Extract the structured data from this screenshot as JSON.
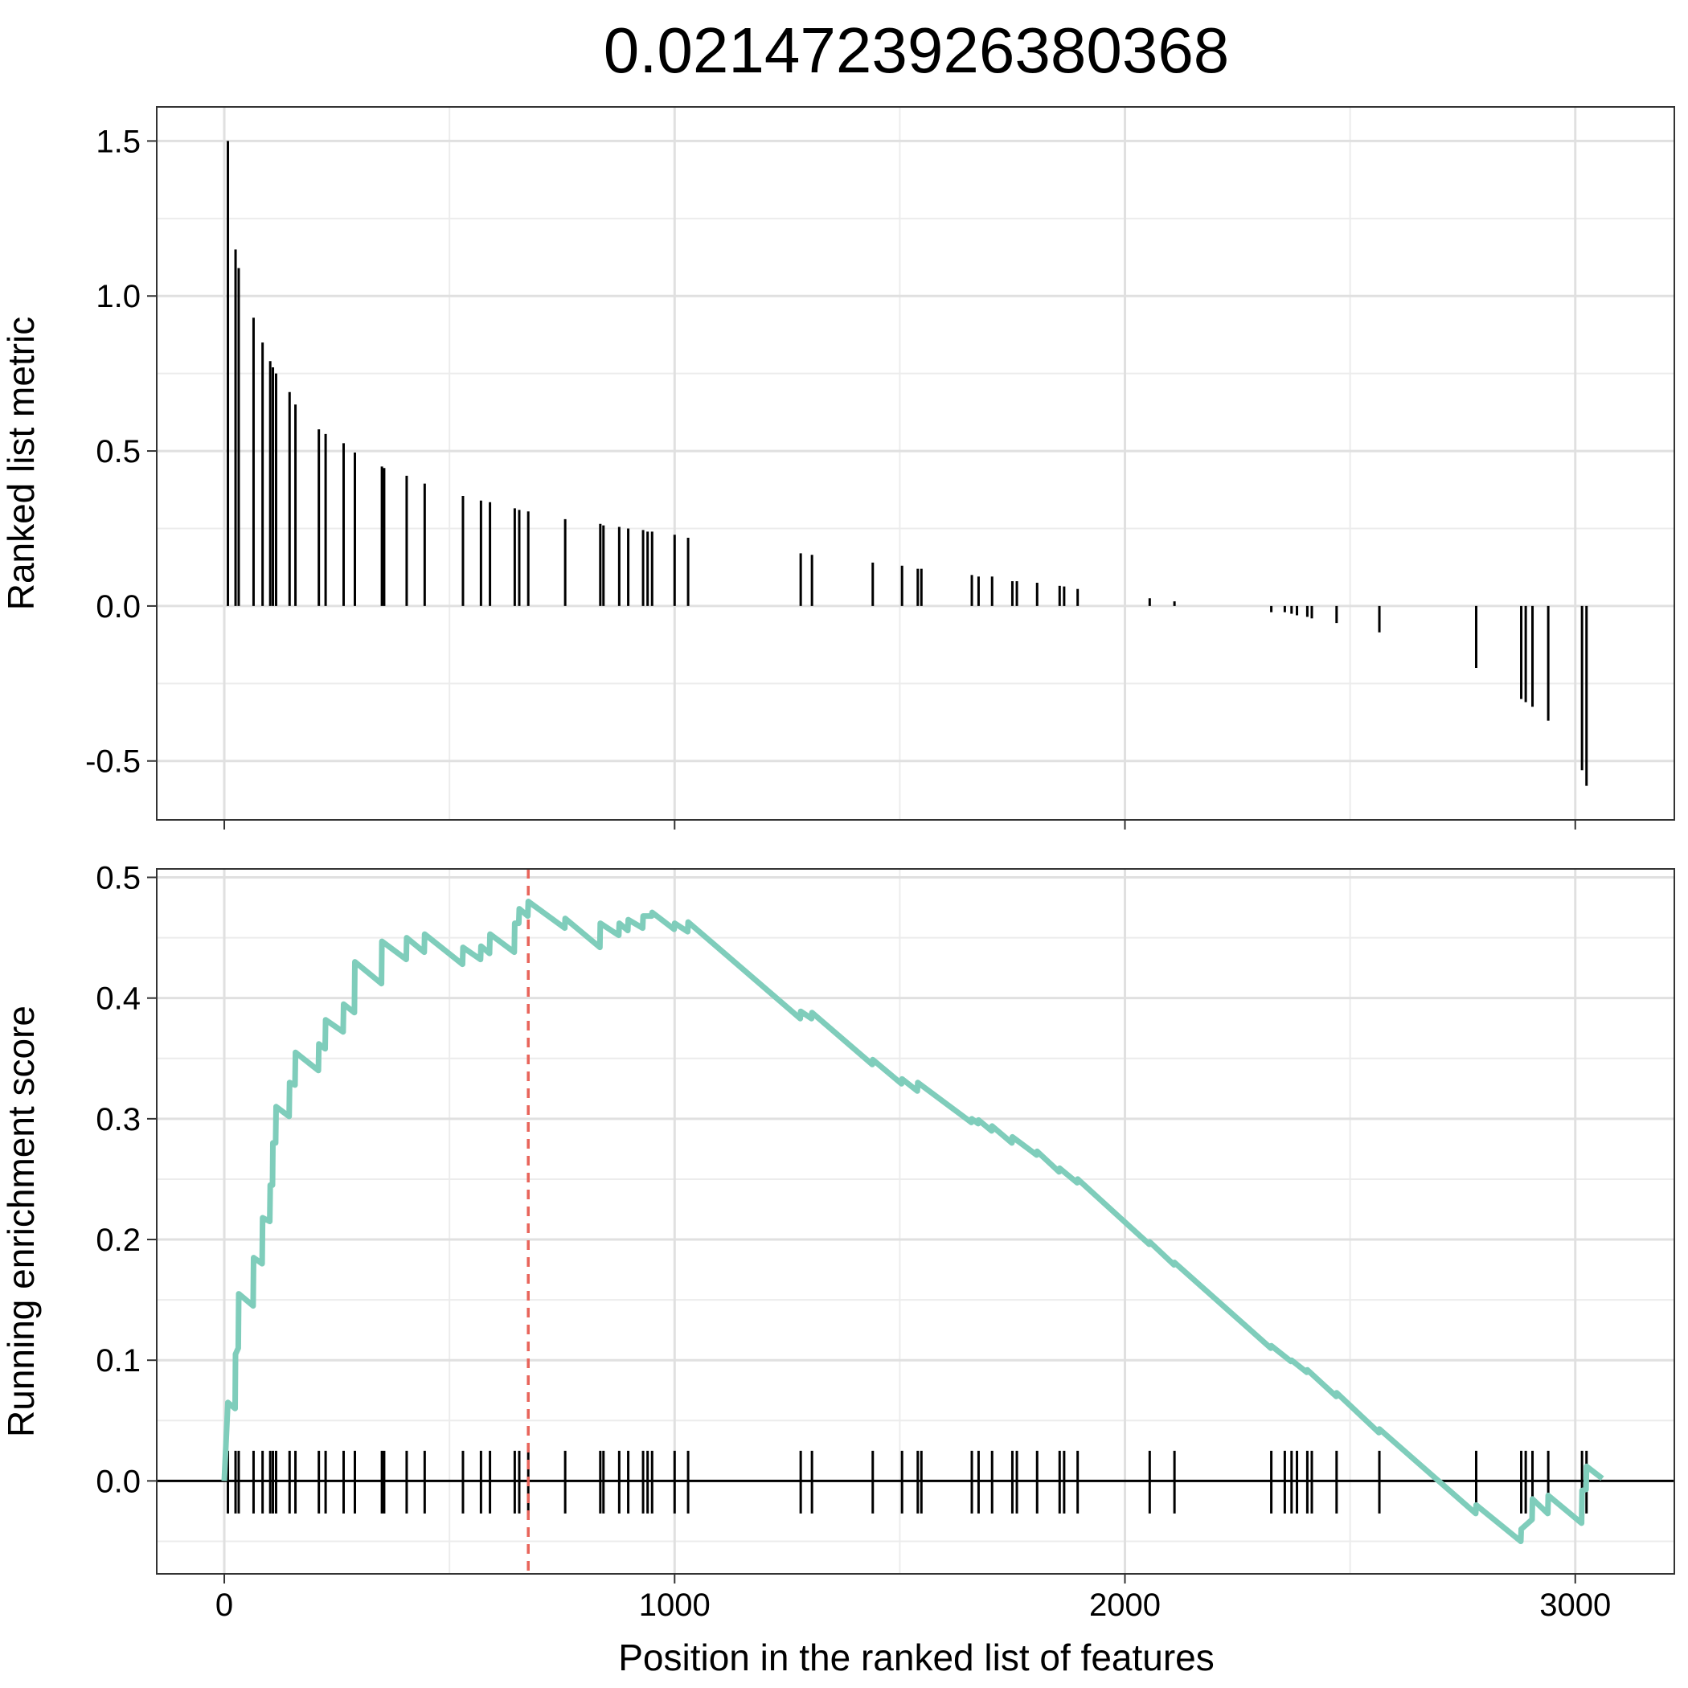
{
  "chart_data": [
    {
      "type": "bar",
      "panel": "ranked-list-metric",
      "title": "0.0214723926380368",
      "xlabel": "",
      "ylabel": "Ranked list metric",
      "xlim": [
        -150,
        3220
      ],
      "ylim": [
        -0.69,
        1.61
      ],
      "xticks": [
        0,
        1000,
        2000,
        3000
      ],
      "yticks": [
        -0.5,
        0.0,
        0.5,
        1.0,
        1.5
      ],
      "ytick_labels": [
        "-0.5",
        "0.0",
        "0.5",
        "1.0",
        "1.5"
      ],
      "grid": true,
      "points": [
        [
          8,
          1.5
        ],
        [
          25,
          1.15
        ],
        [
          32,
          1.09
        ],
        [
          65,
          0.93
        ],
        [
          85,
          0.85
        ],
        [
          102,
          0.79
        ],
        [
          108,
          0.77
        ],
        [
          115,
          0.75
        ],
        [
          145,
          0.69
        ],
        [
          158,
          0.65
        ],
        [
          210,
          0.57
        ],
        [
          225,
          0.555
        ],
        [
          265,
          0.525
        ],
        [
          290,
          0.495
        ],
        [
          350,
          0.45
        ],
        [
          355,
          0.445
        ],
        [
          405,
          0.42
        ],
        [
          445,
          0.395
        ],
        [
          530,
          0.355
        ],
        [
          570,
          0.34
        ],
        [
          590,
          0.335
        ],
        [
          645,
          0.315
        ],
        [
          655,
          0.31
        ],
        [
          675,
          0.305
        ],
        [
          757,
          0.28
        ],
        [
          835,
          0.265
        ],
        [
          842,
          0.26
        ],
        [
          877,
          0.255
        ],
        [
          897,
          0.25
        ],
        [
          930,
          0.245
        ],
        [
          940,
          0.24
        ],
        [
          950,
          0.24
        ],
        [
          1000,
          0.23
        ],
        [
          1030,
          0.22
        ],
        [
          1280,
          0.17
        ],
        [
          1305,
          0.165
        ],
        [
          1440,
          0.14
        ],
        [
          1505,
          0.13
        ],
        [
          1540,
          0.12
        ],
        [
          1548,
          0.12
        ],
        [
          1660,
          0.1
        ],
        [
          1675,
          0.095
        ],
        [
          1705,
          0.095
        ],
        [
          1750,
          0.08
        ],
        [
          1760,
          0.08
        ],
        [
          1805,
          0.075
        ],
        [
          1855,
          0.065
        ],
        [
          1865,
          0.063
        ],
        [
          1895,
          0.055
        ],
        [
          2055,
          0.025
        ],
        [
          2110,
          0.015
        ],
        [
          2325,
          -0.02
        ],
        [
          2355,
          -0.02
        ],
        [
          2370,
          -0.025
        ],
        [
          2382,
          -0.03
        ],
        [
          2405,
          -0.035
        ],
        [
          2415,
          -0.04
        ],
        [
          2470,
          -0.055
        ],
        [
          2565,
          -0.085
        ],
        [
          2780,
          -0.2
        ],
        [
          2880,
          -0.3
        ],
        [
          2890,
          -0.31
        ],
        [
          2905,
          -0.325
        ],
        [
          2940,
          -0.37
        ],
        [
          3015,
          -0.53
        ],
        [
          3025,
          -0.58
        ]
      ]
    },
    {
      "type": "line",
      "panel": "running-enrichment-score",
      "xlabel": "Position in the ranked list of features",
      "ylabel": "Running enrichment score",
      "xlim": [
        -150,
        3220
      ],
      "ylim": [
        -0.077,
        0.507
      ],
      "xticks": [
        0,
        1000,
        2000,
        3000
      ],
      "xtick_labels": [
        "0",
        "1000",
        "2000",
        "3000"
      ],
      "yticks": [
        0.0,
        0.1,
        0.2,
        0.3,
        0.4,
        0.5
      ],
      "ytick_labels": [
        "0.0",
        "0.1",
        "0.2",
        "0.3",
        "0.4",
        "0.5"
      ],
      "grid": true,
      "baseline": 0,
      "max_position": 675,
      "series": [
        {
          "color": "#7fcdbb",
          "points": [
            [
              0,
              0.0
            ],
            [
              8,
              0.065
            ],
            [
              24,
              0.06
            ],
            [
              25,
              0.105
            ],
            [
              31,
              0.11
            ],
            [
              32,
              0.155
            ],
            [
              64,
              0.145
            ],
            [
              65,
              0.185
            ],
            [
              84,
              0.18
            ],
            [
              85,
              0.218
            ],
            [
              101,
              0.215
            ],
            [
              102,
              0.245
            ],
            [
              107,
              0.245
            ],
            [
              108,
              0.28
            ],
            [
              114,
              0.28
            ],
            [
              115,
              0.31
            ],
            [
              144,
              0.302
            ],
            [
              145,
              0.33
            ],
            [
              157,
              0.328
            ],
            [
              158,
              0.355
            ],
            [
              209,
              0.34
            ],
            [
              210,
              0.362
            ],
            [
              224,
              0.358
            ],
            [
              225,
              0.382
            ],
            [
              264,
              0.372
            ],
            [
              265,
              0.395
            ],
            [
              289,
              0.388
            ],
            [
              290,
              0.43
            ],
            [
              349,
              0.412
            ],
            [
              350,
              0.447
            ],
            [
              404,
              0.432
            ],
            [
              405,
              0.45
            ],
            [
              444,
              0.438
            ],
            [
              445,
              0.453
            ],
            [
              529,
              0.428
            ],
            [
              530,
              0.442
            ],
            [
              569,
              0.432
            ],
            [
              570,
              0.443
            ],
            [
              589,
              0.437
            ],
            [
              590,
              0.453
            ],
            [
              644,
              0.438
            ],
            [
              645,
              0.462
            ],
            [
              654,
              0.462
            ],
            [
              655,
              0.474
            ],
            [
              674,
              0.468
            ],
            [
              675,
              0.48
            ],
            [
              756,
              0.458
            ],
            [
              757,
              0.466
            ],
            [
              834,
              0.442
            ],
            [
              835,
              0.462
            ],
            [
              876,
              0.452
            ],
            [
              877,
              0.462
            ],
            [
              896,
              0.456
            ],
            [
              897,
              0.465
            ],
            [
              929,
              0.458
            ],
            [
              930,
              0.468
            ],
            [
              949,
              0.468
            ],
            [
              950,
              0.471
            ],
            [
              999,
              0.457
            ],
            [
              1000,
              0.462
            ],
            [
              1029,
              0.455
            ],
            [
              1030,
              0.463
            ],
            [
              1279,
              0.383
            ],
            [
              1280,
              0.389
            ],
            [
              1304,
              0.383
            ],
            [
              1305,
              0.388
            ],
            [
              1439,
              0.345
            ],
            [
              1440,
              0.349
            ],
            [
              1504,
              0.329
            ],
            [
              1505,
              0.333
            ],
            [
              1539,
              0.323
            ],
            [
              1540,
              0.33
            ],
            [
              1659,
              0.297
            ],
            [
              1660,
              0.3
            ],
            [
              1674,
              0.296
            ],
            [
              1675,
              0.299
            ],
            [
              1704,
              0.29
            ],
            [
              1705,
              0.294
            ],
            [
              1749,
              0.28
            ],
            [
              1750,
              0.285
            ],
            [
              1804,
              0.27
            ],
            [
              1805,
              0.273
            ],
            [
              1854,
              0.256
            ],
            [
              1855,
              0.259
            ],
            [
              1894,
              0.247
            ],
            [
              1895,
              0.25
            ],
            [
              2054,
              0.196
            ],
            [
              2055,
              0.198
            ],
            [
              2109,
              0.179
            ],
            [
              2110,
              0.181
            ],
            [
              2324,
              0.11
            ],
            [
              2325,
              0.112
            ],
            [
              2369,
              0.099
            ],
            [
              2370,
              0.1
            ],
            [
              2404,
              0.09
            ],
            [
              2405,
              0.092
            ],
            [
              2469,
              0.07
            ],
            [
              2470,
              0.073
            ],
            [
              2564,
              0.04
            ],
            [
              2565,
              0.043
            ],
            [
              2779,
              -0.027
            ],
            [
              2780,
              -0.02
            ],
            [
              2879,
              -0.05
            ],
            [
              2880,
              -0.04
            ],
            [
              2904,
              -0.032
            ],
            [
              2905,
              -0.015
            ],
            [
              2939,
              -0.027
            ],
            [
              2940,
              -0.012
            ],
            [
              3014,
              -0.035
            ],
            [
              3015,
              -0.008
            ],
            [
              3024,
              -0.007
            ],
            [
              3025,
              0.012
            ],
            [
              3060,
              0.002
            ]
          ]
        }
      ],
      "hits": [
        8,
        25,
        32,
        65,
        85,
        102,
        108,
        115,
        145,
        158,
        210,
        225,
        265,
        290,
        350,
        355,
        405,
        445,
        530,
        570,
        590,
        645,
        655,
        675,
        757,
        835,
        842,
        877,
        897,
        930,
        940,
        950,
        1000,
        1030,
        1280,
        1305,
        1440,
        1505,
        1540,
        1548,
        1660,
        1675,
        1705,
        1750,
        1760,
        1805,
        1855,
        1865,
        1895,
        2055,
        2110,
        2325,
        2355,
        2370,
        2382,
        2405,
        2415,
        2470,
        2565,
        2780,
        2880,
        2890,
        2905,
        2940,
        3015,
        3025
      ],
      "line_color": "#7fcdbb",
      "max_line_color": "#e8645a"
    }
  ]
}
